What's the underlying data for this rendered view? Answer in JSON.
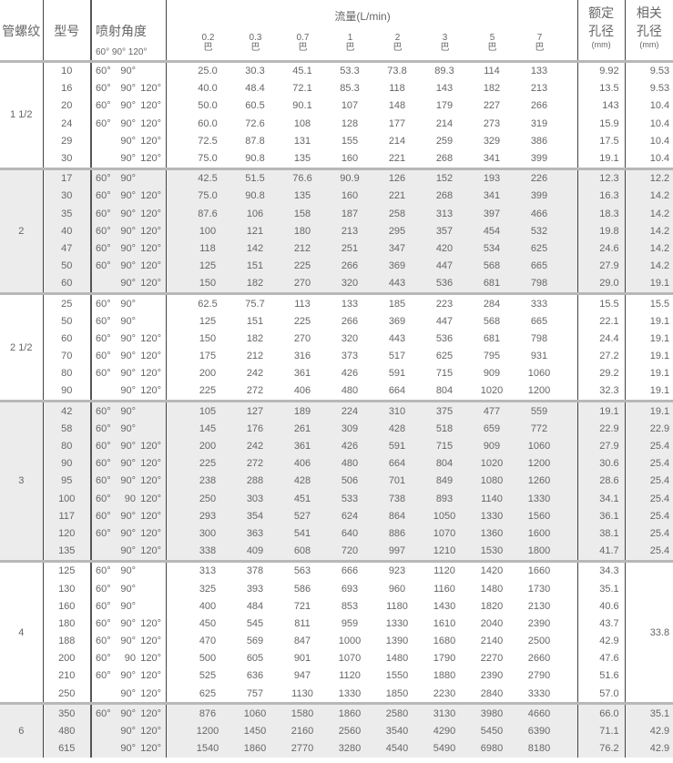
{
  "header": {
    "thread": "管螺纹",
    "model": "型号",
    "angle": "喷射角度",
    "angle_sub": "60° 90° 120°",
    "flow": "流量(L/min)",
    "pressures": [
      {
        "value": "0.2",
        "unit": "巴"
      },
      {
        "value": "0.3",
        "unit": "巴"
      },
      {
        "value": "0.7",
        "unit": "巴"
      },
      {
        "value": "1",
        "unit": "巴"
      },
      {
        "value": "2",
        "unit": "巴"
      },
      {
        "value": "3",
        "unit": "巴"
      },
      {
        "value": "5",
        "unit": "巴"
      },
      {
        "value": "7",
        "unit": "巴"
      }
    ],
    "rated_l1": "额定",
    "rated_l2": "孔径",
    "rated_unit": "(mm)",
    "rel_l1": "相关",
    "rel_l2": "孔径",
    "rel_unit": "(mm)"
  },
  "groups": [
    {
      "thread": "1 1/2",
      "shaded": false,
      "rows": [
        {
          "model": "10",
          "angles": [
            "60°",
            "90°",
            ""
          ],
          "flow": [
            "25.0",
            "30.3",
            "45.1",
            "53.3",
            "73.8",
            "89.3",
            "114",
            "133"
          ],
          "rated": "9.92",
          "rel": "9.53"
        },
        {
          "model": "16",
          "angles": [
            "60°",
            "90°",
            "120°"
          ],
          "flow": [
            "40.0",
            "48.4",
            "72.1",
            "85.3",
            "118",
            "143",
            "182",
            "213"
          ],
          "rated": "13.5",
          "rel": "9.53"
        },
        {
          "model": "20",
          "angles": [
            "60°",
            "90°",
            "120°"
          ],
          "flow": [
            "50.0",
            "60.5",
            "90.1",
            "107",
            "148",
            "179",
            "227",
            "266"
          ],
          "rated": "143",
          "rel": "10.4"
        },
        {
          "model": "24",
          "angles": [
            "60°",
            "90°",
            "120°"
          ],
          "flow": [
            "60.0",
            "72.6",
            "108",
            "128",
            "177",
            "214",
            "273",
            "319"
          ],
          "rated": "15.9",
          "rel": "10.4"
        },
        {
          "model": "29",
          "angles": [
            "",
            "90°",
            "120°"
          ],
          "flow": [
            "72.5",
            "87.8",
            "131",
            "155",
            "214",
            "259",
            "329",
            "386"
          ],
          "rated": "17.5",
          "rel": "10.4"
        },
        {
          "model": "30",
          "angles": [
            "",
            "90°",
            "120°"
          ],
          "flow": [
            "75.0",
            "90.8",
            "135",
            "160",
            "221",
            "268",
            "341",
            "399"
          ],
          "rated": "19.1",
          "rel": "10.4"
        }
      ]
    },
    {
      "thread": "2",
      "shaded": true,
      "rows": [
        {
          "model": "17",
          "angles": [
            "60°",
            "90°",
            ""
          ],
          "flow": [
            "42.5",
            "51.5",
            "76.6",
            "90.9",
            "126",
            "152",
            "193",
            "226"
          ],
          "rated": "12.3",
          "rel": "12.2"
        },
        {
          "model": "30",
          "angles": [
            "60°",
            "90°",
            "120°"
          ],
          "flow": [
            "75.0",
            "90.8",
            "135",
            "160",
            "221",
            "268",
            "341",
            "399"
          ],
          "rated": "16.3",
          "rel": "14.2"
        },
        {
          "model": "35",
          "angles": [
            "60°",
            "90°",
            "120°"
          ],
          "flow": [
            "87.6",
            "106",
            "158",
            "187",
            "258",
            "313",
            "397",
            "466"
          ],
          "rated": "18.3",
          "rel": "14.2"
        },
        {
          "model": "40",
          "angles": [
            "60°",
            "90°",
            "120°"
          ],
          "flow": [
            "100",
            "121",
            "180",
            "213",
            "295",
            "357",
            "454",
            "532"
          ],
          "rated": "19.8",
          "rel": "14.2"
        },
        {
          "model": "47",
          "angles": [
            "60°",
            "90°",
            "120°"
          ],
          "flow": [
            "118",
            "142",
            "212",
            "251",
            "347",
            "420",
            "534",
            "625"
          ],
          "rated": "24.6",
          "rel": "14.2"
        },
        {
          "model": "50",
          "angles": [
            "60°",
            "90°",
            "120°"
          ],
          "flow": [
            "125",
            "151",
            "225",
            "266",
            "369",
            "447",
            "568",
            "665"
          ],
          "rated": "27.9",
          "rel": "14.2"
        },
        {
          "model": "60",
          "angles": [
            "",
            "90°",
            "120°"
          ],
          "flow": [
            "150",
            "182",
            "270",
            "320",
            "443",
            "536",
            "681",
            "798"
          ],
          "rated": "29.0",
          "rel": "19.1"
        }
      ]
    },
    {
      "thread": "2 1/2",
      "shaded": false,
      "rows": [
        {
          "model": "25",
          "angles": [
            "60°",
            "90°",
            ""
          ],
          "flow": [
            "62.5",
            "75.7",
            "113",
            "133",
            "185",
            "223",
            "284",
            "333"
          ],
          "rated": "15.5",
          "rel": "15.5"
        },
        {
          "model": "50",
          "angles": [
            "60°",
            "90°",
            ""
          ],
          "flow": [
            "125",
            "151",
            "225",
            "266",
            "369",
            "447",
            "568",
            "665"
          ],
          "rated": "22.1",
          "rel": "19.1"
        },
        {
          "model": "60",
          "angles": [
            "60°",
            "90°",
            "120°"
          ],
          "flow": [
            "150",
            "182",
            "270",
            "320",
            "443",
            "536",
            "681",
            "798"
          ],
          "rated": "24.4",
          "rel": "19.1"
        },
        {
          "model": "70",
          "angles": [
            "60°",
            "90°",
            "120°"
          ],
          "flow": [
            "175",
            "212",
            "316",
            "373",
            "517",
            "625",
            "795",
            "931"
          ],
          "rated": "27.2",
          "rel": "19.1"
        },
        {
          "model": "80",
          "angles": [
            "60°",
            "90°",
            "120°"
          ],
          "flow": [
            "200",
            "242",
            "361",
            "426",
            "591",
            "715",
            "909",
            "1060"
          ],
          "rated": "29.2",
          "rel": "19.1"
        },
        {
          "model": "90",
          "angles": [
            "",
            "90°",
            "120°"
          ],
          "flow": [
            "225",
            "272",
            "406",
            "480",
            "664",
            "804",
            "1020",
            "1200"
          ],
          "rated": "32.3",
          "rel": "19.1"
        }
      ]
    },
    {
      "thread": "3",
      "shaded": true,
      "rows": [
        {
          "model": "42",
          "angles": [
            "60°",
            "90°",
            ""
          ],
          "flow": [
            "105",
            "127",
            "189",
            "224",
            "310",
            "375",
            "477",
            "559"
          ],
          "rated": "19.1",
          "rel": "19.1"
        },
        {
          "model": "58",
          "angles": [
            "60°",
            "90°",
            ""
          ],
          "flow": [
            "145",
            "176",
            "261",
            "309",
            "428",
            "518",
            "659",
            "772"
          ],
          "rated": "22.9",
          "rel": "22.9"
        },
        {
          "model": "80",
          "angles": [
            "60°",
            "90°",
            "120°"
          ],
          "flow": [
            "200",
            "242",
            "361",
            "426",
            "591",
            "715",
            "909",
            "1060"
          ],
          "rated": "27.9",
          "rel": "25.4"
        },
        {
          "model": "90",
          "angles": [
            "60°",
            "90°",
            "120°"
          ],
          "flow": [
            "225",
            "272",
            "406",
            "480",
            "664",
            "804",
            "1020",
            "1200"
          ],
          "rated": "30.6",
          "rel": "25.4"
        },
        {
          "model": "95",
          "angles": [
            "60°",
            "90°",
            "120°"
          ],
          "flow": [
            "238",
            "288",
            "428",
            "506",
            "701",
            "849",
            "1080",
            "1260"
          ],
          "rated": "28.6",
          "rel": "25.4"
        },
        {
          "model": "100",
          "angles": [
            "60°",
            "90",
            "120°"
          ],
          "flow": [
            "250",
            "303",
            "451",
            "533",
            "738",
            "893",
            "1140",
            "1330"
          ],
          "rated": "34.1",
          "rel": "25.4"
        },
        {
          "model": "117",
          "angles": [
            "60°",
            "90°",
            "120°"
          ],
          "flow": [
            "293",
            "354",
            "527",
            "624",
            "864",
            "1050",
            "1330",
            "1560"
          ],
          "rated": "36.1",
          "rel": "25.4"
        },
        {
          "model": "120",
          "angles": [
            "60°",
            "90°",
            "120°"
          ],
          "flow": [
            "300",
            "363",
            "541",
            "640",
            "886",
            "1070",
            "1360",
            "1600"
          ],
          "rated": "38.1",
          "rel": "25.4"
        },
        {
          "model": "135",
          "angles": [
            "",
            "90°",
            "120°"
          ],
          "flow": [
            "338",
            "409",
            "608",
            "720",
            "997",
            "1210",
            "1530",
            "1800"
          ],
          "rated": "41.7",
          "rel": "25.4"
        }
      ]
    },
    {
      "thread": "4",
      "shaded": false,
      "rel_merged": "33.8",
      "rows": [
        {
          "model": "125",
          "angles": [
            "60°",
            "90°",
            ""
          ],
          "flow": [
            "313",
            "378",
            "563",
            "666",
            "923",
            "1120",
            "1420",
            "1660"
          ],
          "rated": "34.3"
        },
        {
          "model": "130",
          "angles": [
            "60°",
            "90°",
            ""
          ],
          "flow": [
            "325",
            "393",
            "586",
            "693",
            "960",
            "1160",
            "1480",
            "1730"
          ],
          "rated": "35.1"
        },
        {
          "model": "160",
          "angles": [
            "60°",
            "90°",
            ""
          ],
          "flow": [
            "400",
            "484",
            "721",
            "853",
            "1180",
            "1430",
            "1820",
            "2130"
          ],
          "rated": "40.6"
        },
        {
          "model": "180",
          "angles": [
            "60°",
            "90°",
            "120°"
          ],
          "flow": [
            "450",
            "545",
            "811",
            "959",
            "1330",
            "1610",
            "2040",
            "2390"
          ],
          "rated": "43.7"
        },
        {
          "model": "188",
          "angles": [
            "60°",
            "90°",
            "120°"
          ],
          "flow": [
            "470",
            "569",
            "847",
            "1000",
            "1390",
            "1680",
            "2140",
            "2500"
          ],
          "rated": "42.9"
        },
        {
          "model": "200",
          "angles": [
            "60°",
            "90",
            "120°"
          ],
          "flow": [
            "500",
            "605",
            "901",
            "1070",
            "1480",
            "1790",
            "2270",
            "2660"
          ],
          "rated": "47.6"
        },
        {
          "model": "210",
          "angles": [
            "60°",
            "90°",
            "120°"
          ],
          "flow": [
            "525",
            "636",
            "947",
            "1120",
            "1550",
            "1880",
            "2390",
            "2790"
          ],
          "rated": "51.6"
        },
        {
          "model": "250",
          "angles": [
            "",
            "90°",
            "120°"
          ],
          "flow": [
            "625",
            "757",
            "1130",
            "1330",
            "1850",
            "2230",
            "2840",
            "3330"
          ],
          "rated": "57.0"
        }
      ]
    },
    {
      "thread": "6",
      "shaded": true,
      "rows": [
        {
          "model": "350",
          "angles": [
            "60°",
            "90°",
            "120°"
          ],
          "flow": [
            "876",
            "1060",
            "1580",
            "1860",
            "2580",
            "3130",
            "3980",
            "4660"
          ],
          "rated": "66.0",
          "rel": "35.1"
        },
        {
          "model": "480",
          "angles": [
            "",
            "90°",
            "120°"
          ],
          "flow": [
            "1200",
            "1450",
            "2160",
            "2560",
            "3540",
            "4290",
            "5450",
            "6390"
          ],
          "rated": "71.1",
          "rel": "42.9"
        },
        {
          "model": "615",
          "angles": [
            "",
            "90°",
            "120°"
          ],
          "flow": [
            "1540",
            "1860",
            "2770",
            "3280",
            "4540",
            "5490",
            "6980",
            "8180"
          ],
          "rated": "76.2",
          "rel": "42.9"
        }
      ]
    }
  ]
}
